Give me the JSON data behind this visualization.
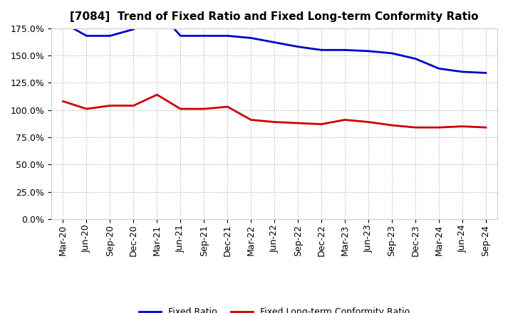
{
  "title": "[7084]  Trend of Fixed Ratio and Fixed Long-term Conformity Ratio",
  "x_labels": [
    "Mar-20",
    "Jun-20",
    "Sep-20",
    "Dec-20",
    "Mar-21",
    "Jun-21",
    "Sep-21",
    "Dec-21",
    "Mar-22",
    "Jun-22",
    "Sep-22",
    "Dec-22",
    "Mar-23",
    "Jun-23",
    "Sep-23",
    "Dec-23",
    "Mar-24",
    "Jun-24",
    "Sep-24"
  ],
  "fixed_ratio": [
    1.8,
    1.68,
    1.68,
    1.74,
    1.92,
    1.68,
    1.68,
    1.68,
    1.66,
    1.62,
    1.58,
    1.55,
    1.55,
    1.54,
    1.52,
    1.47,
    1.38,
    1.35,
    1.34
  ],
  "fixed_lt_ratio": [
    1.08,
    1.01,
    1.04,
    1.04,
    1.14,
    1.01,
    1.01,
    1.03,
    0.91,
    0.89,
    0.88,
    0.87,
    0.91,
    0.89,
    0.86,
    0.84,
    0.84,
    0.85,
    0.84
  ],
  "fixed_ratio_color": "#0000cc",
  "fixed_lt_ratio_color": "#cc0000",
  "background_color": "#ffffff",
  "grid_color": "#999999",
  "ylim": [
    0.0,
    1.75
  ],
  "yticks": [
    0.0,
    0.25,
    0.5,
    0.75,
    1.0,
    1.25,
    1.5,
    1.75
  ],
  "legend_fixed_ratio": "Fixed Ratio",
  "legend_fixed_lt_ratio": "Fixed Long-term Conformity Ratio",
  "title_fontsize": 11,
  "tick_fontsize": 9,
  "legend_fontsize": 9
}
